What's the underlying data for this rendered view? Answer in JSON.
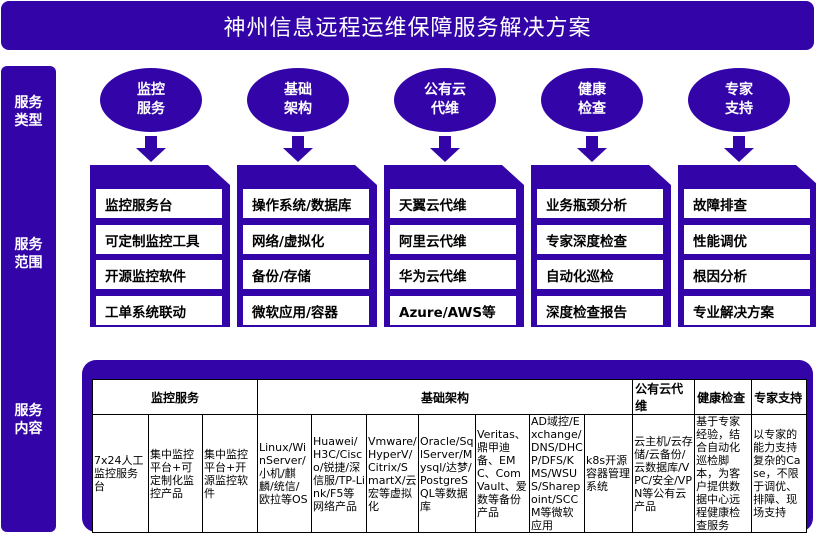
{
  "title": "神州信息远程运维保障服务解决方案",
  "sidebar": [
    "服务\n类型",
    "服务\n范围",
    "服务\n内容"
  ],
  "color": "#3305a8",
  "columns": [
    {
      "type": "监控\n服务",
      "items": [
        "监控服务台",
        "可定制监控工具",
        "开源监控软件",
        "工单系统联动"
      ]
    },
    {
      "type": "基础\n架构",
      "items": [
        "操作系统/数据库",
        "网络/虚拟化",
        "备份/存储",
        "微软应用/容器"
      ]
    },
    {
      "type": "公有云\n代维",
      "items": [
        "天翼云代维",
        "阿里云代维",
        "华为云代维",
        "Azure/AWS等"
      ]
    },
    {
      "type": "健康\n检查",
      "items": [
        "业务瓶颈分析",
        "专家深度检查",
        "自动化巡检",
        "深度检查报告"
      ]
    },
    {
      "type": "专家\n支持",
      "items": [
        "故障排查",
        "性能调优",
        "根因分析",
        "专业解决方案"
      ]
    }
  ],
  "table": {
    "headers": [
      {
        "label": "监控服务",
        "span": 3
      },
      {
        "label": "基础架构",
        "span": 7
      },
      {
        "label": "公有云代维",
        "span": 1
      },
      {
        "label": "健康检查",
        "span": 1
      },
      {
        "label": "专家支持",
        "span": 1
      }
    ],
    "cells": [
      "7x24人工监控服务台",
      "集中监控平台+可定制化监控产品",
      "集中监控平台+开源监控软件",
      "Linux/WinServer/小机/麒麟/统信/欧拉等OS",
      "Huawei/H3C/Cisco/锐捷/深信服/TP-Link/F5等网络产品",
      "Vmware/HyperV/Citrix/SmartX/云宏等虚拟化",
      "Oracle/SqlServer/Mysql/达梦/PostgreSQL等数据库",
      "Veritas、鼎甲迪备、EMC、ComVault、爱数等备份产品",
      "AD域控/Exchange/DNS/DHCP/DFS/KMS/WSUS/Sharepoint/SCCM等微软应用",
      "k8s开源容器管理系统",
      "云主机/云存储/云备份/云数据库/VPC/安全/VPN等公有云产品",
      "基于专家经验，结合自动化巡检脚本，为客户提供数据中心远程健康检查服务",
      "以专家的能力支持复杂的Case，不限于调优、排障、现场支持"
    ]
  }
}
